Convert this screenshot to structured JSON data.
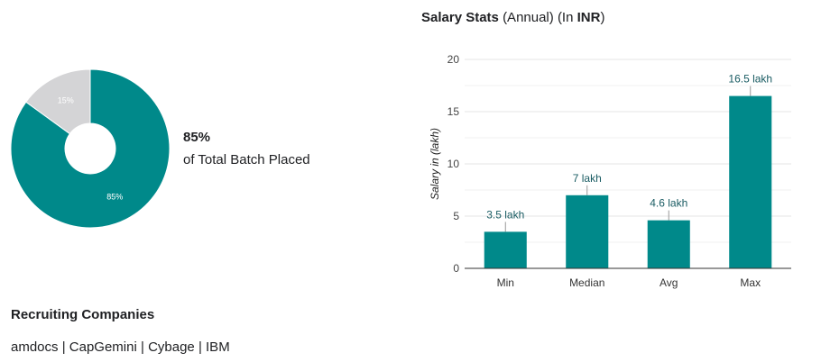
{
  "placement": {
    "percent_label": "85%",
    "caption": "of Total Batch Placed"
  },
  "salary": {
    "title_main": "Salary Stats",
    "title_annual": "(Annual)",
    "title_in": "(In",
    "title_currency": "INR",
    "title_close": ")"
  },
  "recruiting": {
    "title": "Recruiting Companies",
    "companies": [
      "amdocs",
      "CapGemini",
      "Cybage",
      "IBM"
    ],
    "separator": "|"
  },
  "colors": {
    "teal": "#00898a",
    "grey": "#d4d4d6",
    "grid": "#e6e6e6",
    "text": "#202124"
  },
  "chart_data": [
    {
      "type": "pie",
      "style": "donut",
      "slices": [
        {
          "label": "85%",
          "value": 85,
          "color": "#00898a"
        },
        {
          "label": "15%",
          "value": 15,
          "color": "#d4d4d6"
        }
      ]
    },
    {
      "type": "bar",
      "categories": [
        "Min",
        "Median",
        "Avg",
        "Max"
      ],
      "values": [
        3.5,
        7,
        4.6,
        16.5
      ],
      "data_labels": [
        "3.5 lakh",
        "7 lakh",
        "4.6 lakh",
        "16.5 lakh"
      ],
      "ylabel": "Salary in (lakh)",
      "ylim": [
        0,
        20
      ],
      "yticks": [
        0,
        5,
        10,
        15,
        20
      ],
      "grid": true,
      "color": "#00898a"
    }
  ]
}
